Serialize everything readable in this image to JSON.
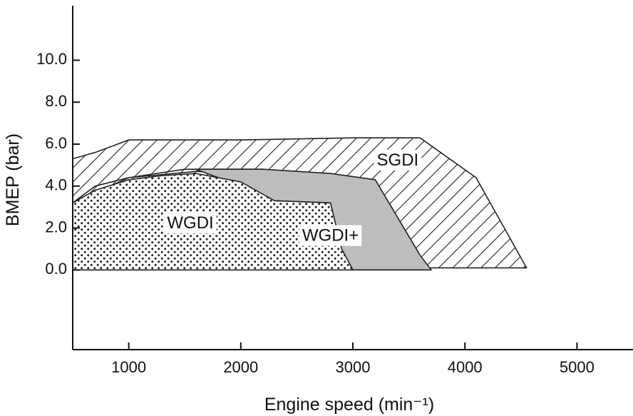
{
  "chart_data": {
    "type": "area",
    "xlabel": "Engine speed (min⁻¹)",
    "ylabel": "BMEP (bar)",
    "xlim": [
      500,
      5500
    ],
    "ylim": [
      -3.8,
      12.6
    ],
    "x_ticks": [
      {
        "value": 1000,
        "label": "1000"
      },
      {
        "value": 2000,
        "label": "2000"
      },
      {
        "value": 3000,
        "label": "3000"
      },
      {
        "value": 4000,
        "label": "4000"
      },
      {
        "value": 5000,
        "label": "5000"
      }
    ],
    "y_ticks": [
      {
        "value": 0,
        "label": "0.0"
      },
      {
        "value": 2,
        "label": "2.0"
      },
      {
        "value": 4,
        "label": "4.0"
      },
      {
        "value": 6,
        "label": "6.0"
      },
      {
        "value": 8,
        "label": "8.0"
      },
      {
        "value": 10,
        "label": "10.0"
      }
    ],
    "grid": false,
    "regions": [
      {
        "name": "SGDI",
        "fill": "hatch",
        "label_at": [
          3400,
          5.2
        ],
        "points": [
          [
            500,
            5.3
          ],
          [
            700,
            5.6
          ],
          [
            1000,
            6.2
          ],
          [
            2000,
            6.2
          ],
          [
            3000,
            6.3
          ],
          [
            3600,
            6.3
          ],
          [
            4100,
            4.4
          ],
          [
            4550,
            0.1
          ],
          [
            3700,
            0.1
          ],
          [
            3000,
            0.1
          ],
          [
            500,
            0.1
          ],
          [
            500,
            3.2
          ],
          [
            700,
            4.0
          ],
          [
            1000,
            4.4
          ],
          [
            1500,
            4.8
          ],
          [
            2200,
            4.8
          ],
          [
            3100,
            4.3
          ],
          [
            2500,
            4.5
          ],
          [
            1600,
            4.7
          ],
          [
            1000,
            4.4
          ],
          [
            500,
            3.2
          ]
        ]
      },
      {
        "name": "WGDI+",
        "fill": "#bdbdbd",
        "label_at": [
          2800,
          1.6
        ],
        "points": [
          [
            1600,
            4.8
          ],
          [
            2200,
            4.8
          ],
          [
            2800,
            4.6
          ],
          [
            3200,
            4.3
          ],
          [
            3600,
            0.7
          ],
          [
            3700,
            0.0
          ],
          [
            3000,
            0.0
          ],
          [
            2900,
            0.9
          ],
          [
            2800,
            3.2
          ],
          [
            2300,
            3.3
          ],
          [
            2000,
            4.0
          ],
          [
            1600,
            4.8
          ]
        ]
      },
      {
        "name": "WGDI",
        "fill": "dots",
        "label_at": [
          1550,
          2.2
        ],
        "points": [
          [
            500,
            3.2
          ],
          [
            700,
            3.8
          ],
          [
            1000,
            4.3
          ],
          [
            1300,
            4.5
          ],
          [
            1600,
            4.6
          ],
          [
            2000,
            4.2
          ],
          [
            2300,
            3.3
          ],
          [
            2800,
            3.2
          ],
          [
            2900,
            1.0
          ],
          [
            3000,
            0.0
          ],
          [
            500,
            0.0
          ]
        ]
      }
    ]
  }
}
